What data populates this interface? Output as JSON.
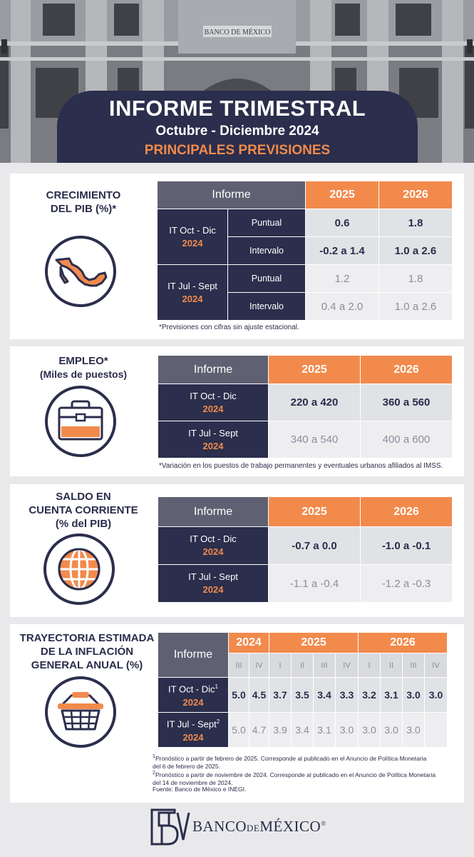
{
  "header": {
    "title": "INFORME TRIMESTRAL",
    "period": "Octubre - Diciembre 2024",
    "tagline": "PRINCIPALES PREVISIONES",
    "building_inscription": "BANCO DE MÉXICO"
  },
  "colors": {
    "navy": "#2b2e4c",
    "orange": "#f28a4c",
    "gray_header": "#5f6072",
    "background": "#e9e9ec"
  },
  "pib": {
    "label_line1": "CRECIMIENTO",
    "label_line2": "DEL PIB (%)*",
    "icon": "mexico-map-icon",
    "header": {
      "informe": "Informe",
      "y2025": "2025",
      "y2026": "2026"
    },
    "rows": [
      {
        "report": "IT Oct - Dic",
        "year": "2024",
        "puntual": "Puntual",
        "intervalo": "Intervalo",
        "puntual_2025": "0.6",
        "puntual_2026": "1.8",
        "intervalo_2025": "-0.2 a 1.4",
        "intervalo_2026": "1.0 a 2.6"
      },
      {
        "report": "IT Jul - Sept",
        "year": "2024",
        "puntual": "Puntual",
        "intervalo": "Intervalo",
        "puntual_2025": "1.2",
        "puntual_2026": "1.8",
        "intervalo_2025": "0.4 a 2.0",
        "intervalo_2026": "1.0 a 2.6"
      }
    ],
    "note": "*Previsiones con cifras sin ajuste estacional."
  },
  "empleo": {
    "label_line1": "EMPLEO*",
    "label_line2": "(Miles de puestos)",
    "icon": "briefcase-icon",
    "header": {
      "informe": "Informe",
      "y2025": "2025",
      "y2026": "2026"
    },
    "rows": [
      {
        "report": "IT Oct - Dic",
        "year": "2024",
        "v2025": "220 a 420",
        "v2026": "360 a 560"
      },
      {
        "report": "IT Jul - Sept",
        "year": "2024",
        "v2025": "340 a 540",
        "v2026": "400 a 600"
      }
    ],
    "note": "*Variación en los puestos de trabajo permanentes y eventuales urbanos afiliados al IMSS."
  },
  "cuenta": {
    "label_line1": "SALDO EN",
    "label_line2": "CUENTA CORRIENTE",
    "label_line3": "(% del PIB)",
    "icon": "globe-icon",
    "header": {
      "informe": "Informe",
      "y2025": "2025",
      "y2026": "2026"
    },
    "rows": [
      {
        "report": "IT Oct - Dic",
        "year": "2024",
        "v2025": "-0.7 a 0.0",
        "v2026": "-1.0 a -0.1"
      },
      {
        "report": "IT Jul - Sept",
        "year": "2024",
        "v2025": "-1.1 a -0.4",
        "v2026": "-1.2 a -0.3"
      }
    ]
  },
  "inflacion": {
    "label_line1": "TRAYECTORIA ESTIMADA",
    "label_line2": "DE LA INFLACIÓN",
    "label_line3": "GENERAL ANUAL (%)",
    "icon": "shopping-basket-icon",
    "header": {
      "informe": "Informe",
      "y2024": "2024",
      "y2025": "2025",
      "y2026": "2026"
    },
    "quarters": [
      "III",
      "IV",
      "I",
      "II",
      "III",
      "IV",
      "I",
      "II",
      "III",
      "IV"
    ],
    "rows": [
      {
        "report": "IT Oct - Dic",
        "sup": "1",
        "year": "2024",
        "values": [
          "5.0",
          "4.5",
          "3.7",
          "3.5",
          "3.4",
          "3.3",
          "3.2",
          "3.1",
          "3.0",
          "3.0"
        ]
      },
      {
        "report": "IT Jul - Sept",
        "sup": "2",
        "year": "2024",
        "values": [
          "5.0",
          "4.7",
          "3.9",
          "3.4",
          "3.1",
          "3.0",
          "3.0",
          "3.0",
          "3.0",
          ""
        ]
      }
    ],
    "footnote1_sup": "1",
    "footnote1": "Pronóstico a partir de febrero de 2025. Corresponde al publicado en el Anuncio de Política Monetaria",
    "footnote1b": "del 6 de febrero de 2025.",
    "footnote2_sup": "2",
    "footnote2": "Pronóstico a partir de noviembre de 2024. Corresponde al publicado en el Anuncio de Política Monetaria",
    "footnote2b": "del 14 de noviembre de 2024.",
    "source": "Fuente: Banco de México e INEGI."
  },
  "footer": {
    "brand_a": "BANCO",
    "brand_de": "DE",
    "brand_b": "MÉXICO",
    "registered": "®",
    "logo": "banxico-logo"
  }
}
